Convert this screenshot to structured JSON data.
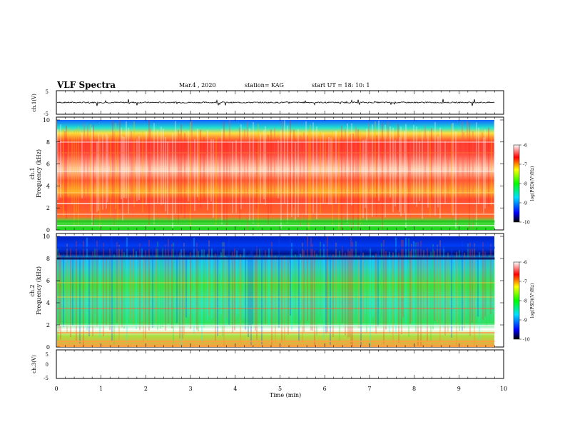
{
  "header": {
    "title": "VLF Spectra",
    "date": "Mar.4 , 2020",
    "station": "station= KAG",
    "start_time": "start UT = 18: 10: 1"
  },
  "chart_data": [
    {
      "type": "line",
      "panel": "ch1-waveform",
      "ylabel": "ch.1(V)",
      "ylim": [
        -5,
        5
      ],
      "ytick_labels": [
        "5",
        "-5"
      ],
      "xlim": [
        0,
        10
      ],
      "x_extent_min": 9.8,
      "series": [
        {
          "values_level": 0
        }
      ]
    },
    {
      "type": "heatmap",
      "panel": "ch1-spectrogram",
      "ylabel_line1": "ch.1",
      "ylabel_line2": "Frequency (kHz)",
      "ylim": [
        0,
        10
      ],
      "ytick_labels": [
        "0",
        "2",
        "4",
        "6",
        "8",
        "10"
      ],
      "xlim": [
        0,
        10
      ],
      "x_extent_min": 9.8,
      "colorbar": {
        "label": "log(PSD)(V²/Hz)",
        "range": [
          -10,
          -6
        ],
        "tick_labels": [
          "-6",
          "-7",
          "-8",
          "-9",
          "-10"
        ]
      }
    },
    {
      "type": "heatmap",
      "panel": "ch2-spectrogram",
      "ylabel_line1": "ch.2",
      "ylabel_line2": "Frequency (kHz)",
      "ylim": [
        0,
        10
      ],
      "ytick_labels": [
        "0",
        "2",
        "4",
        "6",
        "8",
        "10"
      ],
      "xlim": [
        0,
        10
      ],
      "x_extent_min": 9.8,
      "colorbar": {
        "label": "log(PSD)(V²/Hz)",
        "range": [
          -10,
          -6
        ],
        "tick_labels": [
          "-6",
          "-7",
          "-8",
          "-9",
          "-10"
        ]
      }
    },
    {
      "type": "line",
      "panel": "ch3-waveform",
      "ylabel": "ch.3(V)",
      "ylim": [
        -5,
        5
      ],
      "ytick_labels": [
        "5",
        "0",
        "-5"
      ],
      "xlim": [
        0,
        10
      ],
      "series": []
    }
  ],
  "xaxis": {
    "label": "Time (min)",
    "tick_labels": [
      "0",
      "1",
      "2",
      "3",
      "4",
      "5",
      "6",
      "7",
      "8",
      "9",
      "10"
    ]
  }
}
